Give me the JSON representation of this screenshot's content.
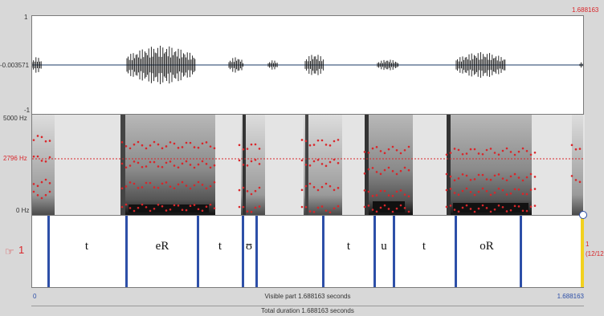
{
  "waveform": {
    "top_label": "1",
    "mid_label": "-0.003571",
    "bottom_label": "-1"
  },
  "cursor_time": "1.688163",
  "spectrogram": {
    "max_label": "5000 Hz",
    "cursor_freq_label": "2796 Hz",
    "min_label": "0 Hz"
  },
  "tier": {
    "number": "1",
    "right_count_1": "1",
    "right_count_2": "(12/12",
    "intervals": [
      "t",
      "eR",
      "t",
      "ʊ",
      "t",
      "u",
      "t",
      "oR"
    ]
  },
  "timebar": {
    "left": "0",
    "right": "1.688163",
    "visible_label": "Visible part 1.688163 seconds",
    "total_label": "Total duration 1.688163 seconds"
  },
  "colors": {
    "boundary": "#2d4fa8",
    "formant": "#d9262a",
    "cursor": "#d9262a",
    "end_marker": "#f2d11f"
  }
}
